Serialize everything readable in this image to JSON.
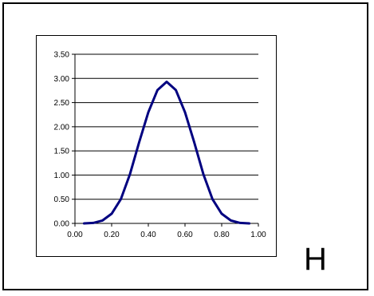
{
  "panel_letter": "H",
  "colors": {
    "line": "#000080",
    "grid": "#000000",
    "axis": "#000000"
  },
  "chart_data": {
    "type": "line",
    "title": "",
    "xlabel": "",
    "ylabel": "",
    "xlim": [
      0.0,
      1.0
    ],
    "ylim": [
      0.0,
      3.5
    ],
    "x_ticks": [
      "0.00",
      "0.20",
      "0.40",
      "0.60",
      "0.80",
      "1.00"
    ],
    "y_ticks": [
      "0.00",
      "0.50",
      "1.00",
      "1.50",
      "2.00",
      "2.50",
      "3.00",
      "3.50"
    ],
    "grid": "horizontal",
    "legend": "none",
    "series": [
      {
        "x": [
          0.05,
          0.1,
          0.15,
          0.2,
          0.25,
          0.3,
          0.35,
          0.4,
          0.45,
          0.5,
          0.55,
          0.6,
          0.65,
          0.7,
          0.75,
          0.8,
          0.85,
          0.9,
          0.95
        ],
        "values": [
          0.0,
          0.01,
          0.06,
          0.2,
          0.5,
          1.02,
          1.68,
          2.3,
          2.76,
          2.93,
          2.76,
          2.3,
          1.68,
          1.02,
          0.5,
          0.2,
          0.06,
          0.01,
          0.0
        ]
      }
    ]
  }
}
